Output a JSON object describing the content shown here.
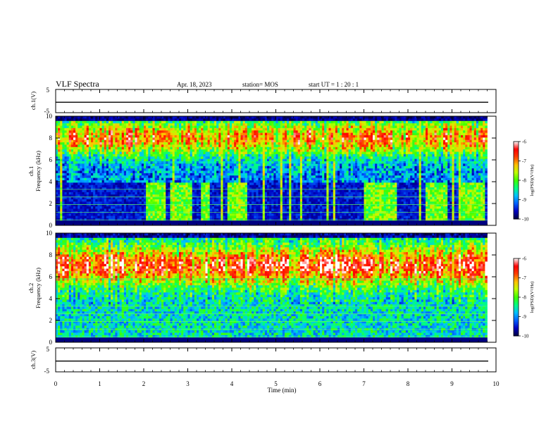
{
  "header": {
    "title": "VLF Spectra",
    "date": "Apr. 18, 2023",
    "station": "station= MOS",
    "start_ut": "start  UT =   1 : 20 : 1"
  },
  "chart_data": [
    {
      "type": "line",
      "panel": "ch1-voltage",
      "ylabel": "ch.1(V)",
      "ylim": [
        -5,
        5
      ],
      "yticks": [
        "5",
        "-5"
      ],
      "x": [
        0,
        10
      ],
      "values": [
        -0.5,
        -0.5
      ],
      "line_color": "#000000"
    },
    {
      "type": "heatmap",
      "panel": "ch1-spectrogram",
      "ylabel_top": "ch.1",
      "ylabel": "Frequency (kHz)",
      "ylim": [
        0,
        10
      ],
      "yticks": [
        "0",
        "2",
        "4",
        "6",
        "8",
        "10"
      ],
      "xlim": [
        0,
        9.8
      ],
      "broadband_bursts_min": [
        [
          2.05,
          2.5
        ],
        [
          2.6,
          3.1
        ],
        [
          3.3,
          3.5
        ],
        [
          3.9,
          4.35
        ],
        [
          7.0,
          7.75
        ],
        [
          8.4,
          8.9
        ],
        [
          9.2,
          9.75
        ]
      ],
      "colorbar": {
        "label": "log(PSD)(V²/Hz)",
        "ticks": [
          "-6",
          "-7",
          "-8",
          "-9",
          "-10"
        ],
        "range": [
          -10,
          -6
        ]
      }
    },
    {
      "type": "heatmap",
      "panel": "ch2-spectrogram",
      "ylabel_top": "ch.2",
      "ylabel": "Frequency (kHz)",
      "ylim": [
        0,
        10
      ],
      "yticks": [
        "0",
        "2",
        "4",
        "6",
        "8",
        "10"
      ],
      "xlim": [
        0,
        9.8
      ],
      "intense_band_khz": [
        5.5,
        9.0
      ],
      "colorbar": {
        "label": "log(PSD)(V²/Hz)",
        "ticks": [
          "-6",
          "-7",
          "-8",
          "-9",
          "-10"
        ],
        "range": [
          -10,
          -6
        ]
      }
    },
    {
      "type": "line",
      "panel": "ch3-voltage",
      "ylabel": "ch.3(V)",
      "ylim": [
        -5,
        5
      ],
      "yticks": [
        "5",
        "-5"
      ],
      "x": [
        0,
        10
      ],
      "values": [
        -0.5,
        -0.5
      ],
      "line_color": "#000000"
    }
  ],
  "xaxis": {
    "label": "Time  (min)",
    "range": [
      0,
      10
    ],
    "ticks": [
      "0",
      "1",
      "2",
      "3",
      "4",
      "5",
      "6",
      "7",
      "8",
      "9",
      "10"
    ]
  },
  "colormap": [
    "#000040",
    "#0000c0",
    "#0060ff",
    "#00c0ff",
    "#00ff80",
    "#40ff00",
    "#c0ff00",
    "#ffc000",
    "#ff4000",
    "#ff0000",
    "#ffffff"
  ]
}
